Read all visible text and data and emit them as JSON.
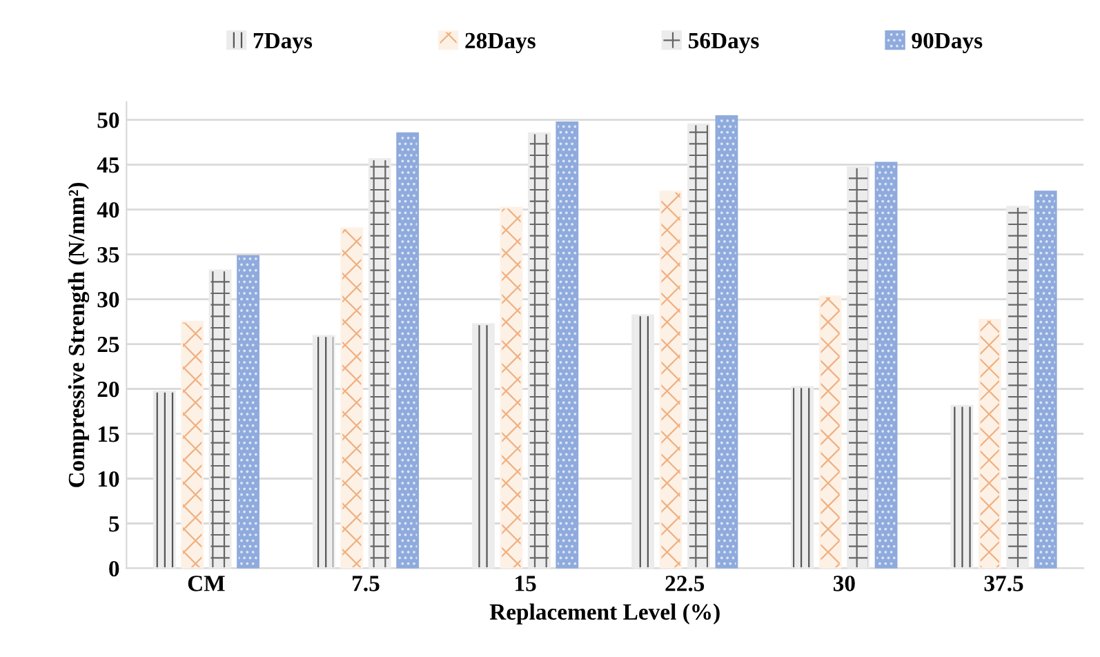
{
  "chart_data": {
    "type": "bar",
    "xlabel": "Replacement Level (%)",
    "ylabel": "Compressive Strength (N/mm²)",
    "categories": [
      "CM",
      "7.5",
      "15",
      "22.5",
      "30",
      "37.5"
    ],
    "series": [
      {
        "name": "7Days",
        "color": "#ececec",
        "values": [
          19.7,
          25.9,
          27.2,
          28.2,
          20.2,
          18.1
        ]
      },
      {
        "name": "28Days",
        "color": "#fdf1e6",
        "values": [
          27.5,
          37.9,
          40.2,
          42.0,
          30.3,
          27.7
        ]
      },
      {
        "name": "56Days",
        "color": "#ececec",
        "values": [
          33.2,
          45.6,
          48.5,
          49.5,
          44.7,
          40.3
        ]
      },
      {
        "name": "90Days",
        "color": "#8faadc",
        "values": [
          34.8,
          48.5,
          49.7,
          50.4,
          45.2,
          42.0
        ]
      }
    ],
    "ylim": [
      0,
      52
    ],
    "yticks": [
      0,
      5,
      10,
      15,
      20,
      25,
      30,
      35,
      40,
      45,
      50
    ],
    "grid": "y",
    "legend": "top"
  }
}
